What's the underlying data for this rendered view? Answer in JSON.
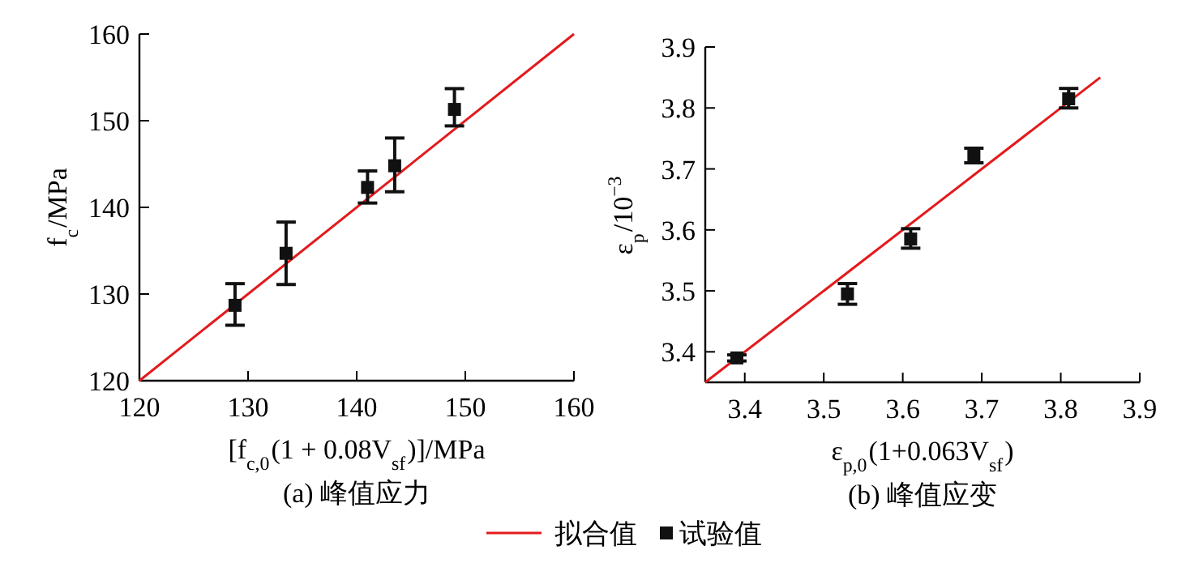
{
  "chart_data": [
    {
      "type": "scatter",
      "title": "(a) 峰值应力",
      "xlabel": "[f$_{c,0}$(1 + 0.08V$_{sf}$)]/MPa",
      "ylabel": "f$_{c}$/MPa",
      "xlim": [
        120,
        160
      ],
      "ylim": [
        120,
        160
      ],
      "xticks": [
        120,
        130,
        140,
        150,
        160
      ],
      "yticks": [
        120,
        130,
        140,
        150,
        160
      ],
      "grid": false,
      "legend": "bottom",
      "series": [
        {
          "name": "拟合值",
          "type": "line",
          "color": "#e31a1c",
          "x": [
            120,
            160
          ],
          "values": [
            120,
            160
          ],
          "line_style": "solid"
        },
        {
          "name": "试验值",
          "type": "scatter",
          "color": "#111111",
          "marker": "square",
          "x": [
            128.8,
            133.5,
            141,
            143.5,
            149
          ],
          "values": [
            128.7,
            134.7,
            142.3,
            144.8,
            151.3
          ],
          "errors": [
            [
              126.4,
              131.2
            ],
            [
              131.1,
              138.3
            ],
            [
              140.5,
              144.2
            ],
            [
              141.8,
              148
            ],
            [
              149.4,
              153.7
            ]
          ]
        }
      ]
    },
    {
      "type": "scatter",
      "title": "(b) 峰值应变",
      "xlabel": "ε$_{p,0}$(1+0.063V$_{sf}$)",
      "ylabel": "ε$_{p}$/10$^{−3}$",
      "xlim": [
        3.35,
        3.9
      ],
      "ylim": [
        3.35,
        3.9
      ],
      "xticks": [
        3.4,
        3.5,
        3.6,
        3.7,
        3.8,
        3.9
      ],
      "yticks": [
        3.4,
        3.5,
        3.6,
        3.7,
        3.8,
        3.9
      ],
      "grid": false,
      "legend": "bottom",
      "series": [
        {
          "name": "拟合值",
          "type": "line",
          "color": "#e31a1c",
          "x": [
            3.35,
            3.85
          ],
          "values": [
            3.35,
            3.85
          ],
          "line_style": "solid"
        },
        {
          "name": "试验值",
          "type": "scatter",
          "color": "#111111",
          "marker": "square",
          "x": [
            3.39,
            3.53,
            3.61,
            3.69,
            3.81
          ],
          "values": [
            3.39,
            3.495,
            3.585,
            3.722,
            3.815
          ],
          "errors": [
            [
              3.385,
              3.395
            ],
            [
              3.478,
              3.512
            ],
            [
              3.57,
              3.602
            ],
            [
              3.71,
              3.734
            ],
            [
              3.8,
              3.832
            ]
          ]
        }
      ]
    }
  ]
}
